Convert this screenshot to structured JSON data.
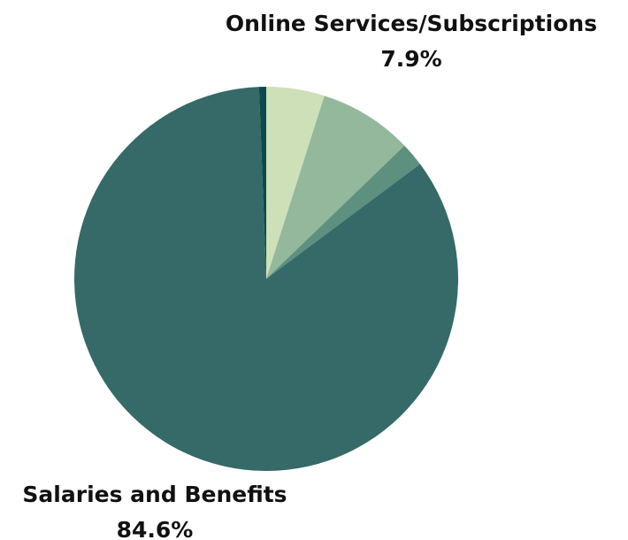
{
  "chart_data": {
    "type": "pie",
    "categories": [
      null,
      "Online Services/Subscriptions",
      null,
      "Salaries and Benefits",
      null
    ],
    "values": [
      4.9,
      7.9,
      2.0,
      84.6,
      0.6
    ],
    "value_labels": [
      null,
      "7.9%",
      null,
      "84.6%",
      null
    ],
    "colors": [
      "#cde0b8",
      "#93b89c",
      "#5e9080",
      "#356a68",
      "#0d4a4f"
    ]
  }
}
